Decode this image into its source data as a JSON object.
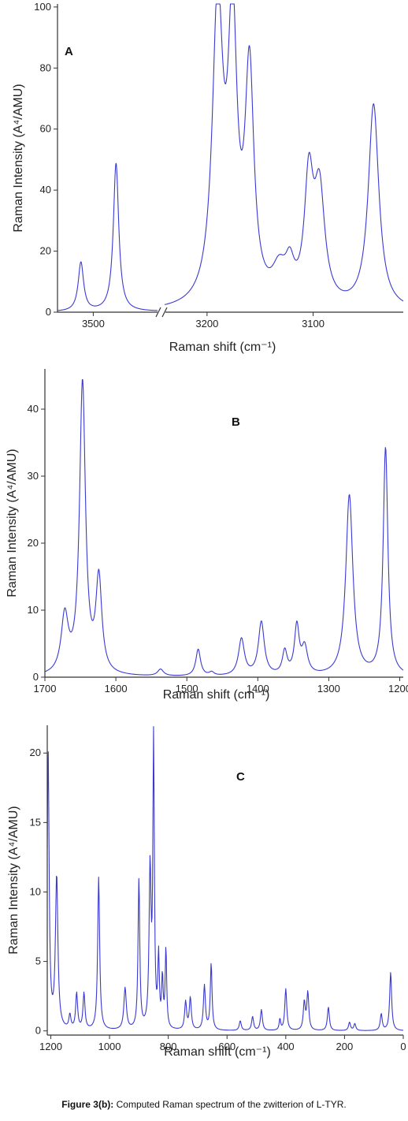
{
  "caption": {
    "lead": "Figure 3(b):",
    "text": "Computed Raman spectrum of the zwitterion of L-TYR."
  },
  "colors": {
    "series": "#3a3ad2",
    "axis": "#333333"
  },
  "chart_data": [
    {
      "type": "line",
      "panel_label": "A",
      "xlabel": "Raman shift (cm⁻¹)",
      "ylabel": "Raman Intensity (A⁴/AMU)",
      "x_reversed": true,
      "axis_break": [
        3400,
        3240
      ],
      "xlim": [
        3555,
        3015
      ],
      "ylim": [
        0,
        101
      ],
      "xticks": [
        3500,
        3200,
        3100
      ],
      "yticks": [
        0,
        20,
        40,
        60,
        80,
        100
      ],
      "grid": false,
      "peaks": [
        {
          "x": 3519,
          "y": 16,
          "w": 5
        },
        {
          "x": 3465,
          "y": 48.5,
          "w": 5
        },
        {
          "x": 3190,
          "y": 97,
          "w": 6
        },
        {
          "x": 3176,
          "y": 88,
          "w": 5
        },
        {
          "x": 3160,
          "y": 74,
          "w": 5
        },
        {
          "x": 3132,
          "y": 10,
          "w": 8
        },
        {
          "x": 3122,
          "y": 10,
          "w": 5
        },
        {
          "x": 3104,
          "y": 39,
          "w": 5
        },
        {
          "x": 3094,
          "y": 36,
          "w": 6
        },
        {
          "x": 3043,
          "y": 67,
          "w": 6
        }
      ]
    },
    {
      "type": "line",
      "panel_label": "B",
      "xlabel": "Raman shift (cm⁻¹)",
      "ylabel": "Raman Intensity (A⁴/AMU)",
      "x_reversed": true,
      "xlim": [
        1700,
        1195
      ],
      "ylim": [
        0,
        46
      ],
      "xticks": [
        1700,
        1600,
        1500,
        1400,
        1300,
        1200
      ],
      "yticks": [
        0,
        10,
        20,
        30,
        40
      ],
      "grid": false,
      "peaks": [
        {
          "x": 1672,
          "y": 8.5,
          "w": 6
        },
        {
          "x": 1647,
          "y": 43.5,
          "w": 5
        },
        {
          "x": 1624,
          "y": 14,
          "w": 5
        },
        {
          "x": 1537,
          "y": 1.0,
          "w": 5
        },
        {
          "x": 1484,
          "y": 4,
          "w": 4
        },
        {
          "x": 1465,
          "y": 0.5,
          "w": 4
        },
        {
          "x": 1423,
          "y": 5.5,
          "w": 5
        },
        {
          "x": 1395,
          "y": 8,
          "w": 5
        },
        {
          "x": 1362,
          "y": 3.5,
          "w": 4
        },
        {
          "x": 1345,
          "y": 7.2,
          "w": 4
        },
        {
          "x": 1334,
          "y": 4.0,
          "w": 5
        },
        {
          "x": 1271,
          "y": 27,
          "w": 6
        },
        {
          "x": 1220,
          "y": 34,
          "w": 4
        }
      ]
    },
    {
      "type": "line",
      "panel_label": "C",
      "xlabel": "Raman shift (cm⁻¹)",
      "ylabel": "Raman Intensity (A⁴/AMU)",
      "x_reversed": true,
      "xlim": [
        1212,
        0
      ],
      "ylim": [
        -0.3,
        22
      ],
      "xticks": [
        1200,
        1000,
        800,
        600,
        400,
        200,
        0
      ],
      "yticks": [
        0,
        5,
        10,
        15,
        20
      ],
      "grid": false,
      "peaks": [
        {
          "x": 1209,
          "y": 20,
          "w": 4
        },
        {
          "x": 1180,
          "y": 11,
          "w": 5
        },
        {
          "x": 1135,
          "y": 1.0,
          "w": 4
        },
        {
          "x": 1112,
          "y": 2.6,
          "w": 4
        },
        {
          "x": 1087,
          "y": 2.6,
          "w": 4
        },
        {
          "x": 1037,
          "y": 11,
          "w": 4
        },
        {
          "x": 947,
          "y": 3.0,
          "w": 5
        },
        {
          "x": 900,
          "y": 10.8,
          "w": 3.5
        },
        {
          "x": 862,
          "y": 11.3,
          "w": 4
        },
        {
          "x": 850,
          "y": 20.5,
          "w": 3
        },
        {
          "x": 833,
          "y": 5.0,
          "w": 3
        },
        {
          "x": 820,
          "y": 3.5,
          "w": 3
        },
        {
          "x": 808,
          "y": 5.7,
          "w": 3
        },
        {
          "x": 741,
          "y": 2.0,
          "w": 4
        },
        {
          "x": 725,
          "y": 2.3,
          "w": 4
        },
        {
          "x": 677,
          "y": 3.2,
          "w": 4
        },
        {
          "x": 654,
          "y": 4.8,
          "w": 3.5
        },
        {
          "x": 555,
          "y": 0.7,
          "w": 4
        },
        {
          "x": 513,
          "y": 1.0,
          "w": 4
        },
        {
          "x": 483,
          "y": 1.5,
          "w": 4
        },
        {
          "x": 420,
          "y": 0.8,
          "w": 3
        },
        {
          "x": 400,
          "y": 3.0,
          "w": 4
        },
        {
          "x": 337,
          "y": 2.0,
          "w": 4
        },
        {
          "x": 325,
          "y": 2.7,
          "w": 4
        },
        {
          "x": 255,
          "y": 1.7,
          "w": 4
        },
        {
          "x": 183,
          "y": 0.6,
          "w": 4
        },
        {
          "x": 165,
          "y": 0.5,
          "w": 4
        },
        {
          "x": 75,
          "y": 1.2,
          "w": 4
        },
        {
          "x": 43,
          "y": 4.2,
          "w": 4
        }
      ]
    }
  ]
}
